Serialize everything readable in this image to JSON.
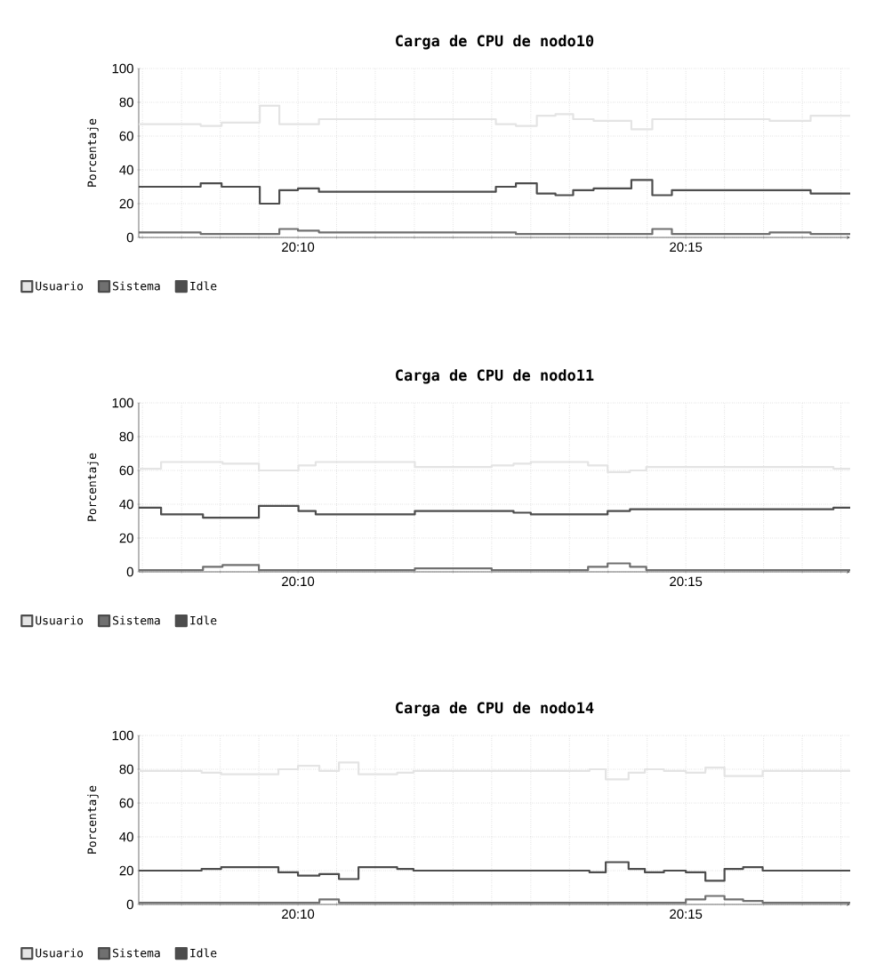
{
  "chart_data": [
    {
      "type": "step",
      "title": "Carga de CPU de nodo10",
      "ylabel": "Porcentaje",
      "x": [
        20.1325,
        20.1458,
        20.1503,
        20.1585,
        20.1627,
        20.1667,
        20.1712,
        20.2092,
        20.2135,
        20.218,
        20.222,
        20.2258,
        20.2302,
        20.2383,
        20.2428,
        20.247,
        20.268,
        20.2768,
        20.2853
      ],
      "series": [
        {
          "name": "Usuario",
          "color": "#e4e4e4",
          "values": [
            67,
            66,
            68,
            78,
            67,
            67,
            70,
            67,
            66,
            72,
            73,
            70,
            69,
            64,
            70,
            70,
            69,
            72,
            72
          ]
        },
        {
          "name": "Sistema",
          "color": "#707070",
          "values": [
            3,
            2,
            2,
            2,
            5,
            4,
            3,
            3,
            2,
            2,
            2,
            2,
            2,
            2,
            5,
            2,
            3,
            2,
            2
          ]
        },
        {
          "name": "Idle",
          "color": "#4d4d4d",
          "values": [
            30,
            32,
            30,
            20,
            28,
            29,
            27,
            30,
            32,
            26,
            25,
            28,
            29,
            34,
            25,
            28,
            28,
            26,
            26
          ]
        }
      ],
      "xlim": [
        20.1325,
        20.2853
      ],
      "ylim": [
        0,
        100
      ],
      "xticks": [
        {
          "value": 20.1333,
          "label": null
        },
        {
          "value": 20.1417,
          "label": null
        },
        {
          "value": 20.15,
          "label": null
        },
        {
          "value": 20.1583,
          "label": null
        },
        {
          "value": 20.1667,
          "label": "20:10"
        },
        {
          "value": 20.175,
          "label": null
        },
        {
          "value": 20.1833,
          "label": null
        },
        {
          "value": 20.1917,
          "label": null
        },
        {
          "value": 20.2,
          "label": null
        },
        {
          "value": 20.2083,
          "label": null
        },
        {
          "value": 20.2167,
          "label": null
        },
        {
          "value": 20.225,
          "label": null
        },
        {
          "value": 20.2333,
          "label": null
        },
        {
          "value": 20.2417,
          "label": null
        },
        {
          "value": 20.25,
          "label": "20:15"
        },
        {
          "value": 20.2583,
          "label": null
        },
        {
          "value": 20.2667,
          "label": null
        },
        {
          "value": 20.275,
          "label": null
        },
        {
          "value": 20.2833,
          "label": null
        }
      ],
      "yticks": [
        0,
        20,
        40,
        60,
        80,
        100
      ],
      "grid": true,
      "legend": "bottom left"
    },
    {
      "type": "step",
      "title": "Carga de CPU de nodo11",
      "ylabel": "Porcentaje",
      "x": [
        20.1325,
        20.1373,
        20.1463,
        20.1505,
        20.1583,
        20.1668,
        20.1705,
        20.1918,
        20.2083,
        20.213,
        20.2167,
        20.229,
        20.2332,
        20.238,
        20.2415,
        20.2817,
        20.2853
      ],
      "series": [
        {
          "name": "Usuario",
          "color": "#e4e4e4",
          "values": [
            61,
            65,
            65,
            64,
            60,
            63,
            65,
            62,
            63,
            64,
            65,
            63,
            59,
            60,
            62,
            61,
            61
          ]
        },
        {
          "name": "Sistema",
          "color": "#707070",
          "values": [
            1,
            1,
            3,
            4,
            1,
            1,
            1,
            2,
            1,
            1,
            1,
            3,
            5,
            3,
            1,
            1,
            1
          ]
        },
        {
          "name": "Idle",
          "color": "#4d4d4d",
          "values": [
            38,
            34,
            32,
            32,
            39,
            36,
            34,
            36,
            36,
            35,
            34,
            34,
            36,
            37,
            37,
            38,
            38
          ]
        }
      ],
      "xlim": [
        20.1325,
        20.2853
      ],
      "ylim": [
        0,
        100
      ],
      "xticks": [
        {
          "value": 20.1333,
          "label": null
        },
        {
          "value": 20.1417,
          "label": null
        },
        {
          "value": 20.15,
          "label": null
        },
        {
          "value": 20.1583,
          "label": null
        },
        {
          "value": 20.1667,
          "label": "20:10"
        },
        {
          "value": 20.175,
          "label": null
        },
        {
          "value": 20.1833,
          "label": null
        },
        {
          "value": 20.1917,
          "label": null
        },
        {
          "value": 20.2,
          "label": null
        },
        {
          "value": 20.2083,
          "label": null
        },
        {
          "value": 20.2167,
          "label": null
        },
        {
          "value": 20.225,
          "label": null
        },
        {
          "value": 20.2333,
          "label": null
        },
        {
          "value": 20.2417,
          "label": null
        },
        {
          "value": 20.25,
          "label": "20:15"
        },
        {
          "value": 20.2583,
          "label": null
        },
        {
          "value": 20.2667,
          "label": null
        },
        {
          "value": 20.275,
          "label": null
        },
        {
          "value": 20.2833,
          "label": null
        }
      ],
      "yticks": [
        0,
        20,
        40,
        60,
        80,
        100
      ],
      "grid": true,
      "legend": "bottom left"
    },
    {
      "type": "step",
      "title": "Carga de CPU de nodo14",
      "ylabel": "Porcentaje",
      "x": [
        20.1325,
        20.146,
        20.1502,
        20.1625,
        20.1667,
        20.1713,
        20.1755,
        20.1797,
        20.188,
        20.1915,
        20.2293,
        20.2328,
        20.2377,
        20.2412,
        20.2453,
        20.25,
        20.2542,
        20.2583,
        20.2623,
        20.2665,
        20.2853
      ],
      "series": [
        {
          "name": "Usuario",
          "color": "#e4e4e4",
          "values": [
            79,
            78,
            77,
            80,
            82,
            79,
            84,
            77,
            78,
            79,
            80,
            74,
            78,
            80,
            79,
            78,
            81,
            76,
            76,
            79,
            79
          ]
        },
        {
          "name": "Sistema",
          "color": "#707070",
          "values": [
            1,
            1,
            1,
            1,
            1,
            3,
            1,
            1,
            1,
            1,
            1,
            1,
            1,
            1,
            1,
            3,
            5,
            3,
            2,
            1,
            1
          ]
        },
        {
          "name": "Idle",
          "color": "#4d4d4d",
          "values": [
            20,
            21,
            22,
            19,
            17,
            18,
            15,
            22,
            21,
            20,
            19,
            25,
            21,
            19,
            20,
            19,
            14,
            21,
            22,
            20,
            20
          ]
        }
      ],
      "xlim": [
        20.1325,
        20.2853
      ],
      "ylim": [
        0,
        100
      ],
      "xticks": [
        {
          "value": 20.1333,
          "label": null
        },
        {
          "value": 20.1417,
          "label": null
        },
        {
          "value": 20.15,
          "label": null
        },
        {
          "value": 20.1583,
          "label": null
        },
        {
          "value": 20.1667,
          "label": "20:10"
        },
        {
          "value": 20.175,
          "label": null
        },
        {
          "value": 20.1833,
          "label": null
        },
        {
          "value": 20.1917,
          "label": null
        },
        {
          "value": 20.2,
          "label": null
        },
        {
          "value": 20.2083,
          "label": null
        },
        {
          "value": 20.2167,
          "label": null
        },
        {
          "value": 20.225,
          "label": null
        },
        {
          "value": 20.2333,
          "label": null
        },
        {
          "value": 20.2417,
          "label": null
        },
        {
          "value": 20.25,
          "label": "20:15"
        },
        {
          "value": 20.2583,
          "label": null
        },
        {
          "value": 20.2667,
          "label": null
        },
        {
          "value": 20.275,
          "label": null
        },
        {
          "value": 20.2833,
          "label": null
        }
      ],
      "yticks": [
        0,
        20,
        40,
        60,
        80,
        100
      ],
      "grid": true,
      "legend": "bottom left"
    }
  ]
}
